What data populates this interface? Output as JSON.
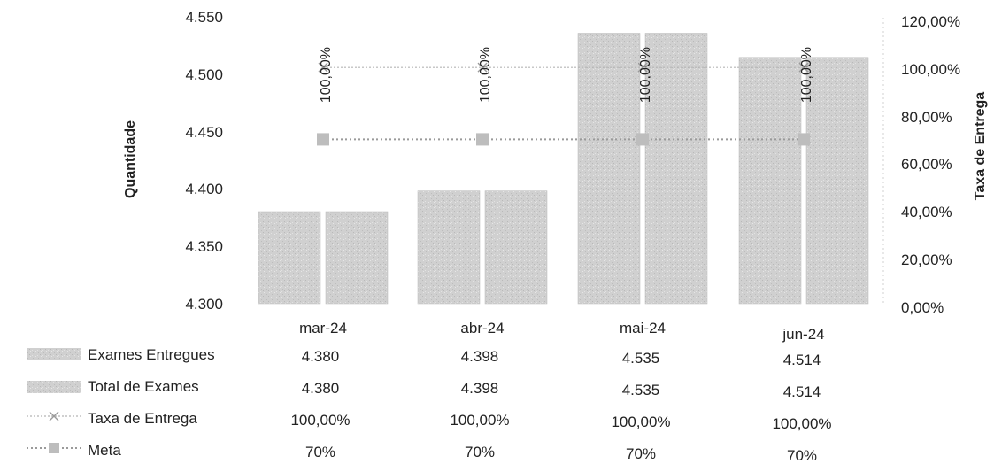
{
  "chart_data": {
    "type": "bar",
    "categories": [
      "mar-24",
      "abr-24",
      "mai-24",
      "jun-24"
    ],
    "series": [
      {
        "name": "Exames Entregues",
        "type": "bar",
        "axis": "left",
        "values": [
          4380,
          4398,
          4535,
          4514
        ]
      },
      {
        "name": "Total de Exames",
        "type": "bar",
        "axis": "left",
        "values": [
          4380,
          4398,
          4535,
          4514
        ]
      },
      {
        "name": "Taxa de Entrega",
        "type": "line",
        "axis": "right",
        "values": [
          100,
          100,
          100,
          100
        ]
      },
      {
        "name": "Meta",
        "type": "line",
        "axis": "right",
        "values": [
          70,
          70,
          70,
          70
        ]
      }
    ],
    "ylabel": "Quantidade",
    "y2label": "Taxa de Entrega",
    "ylim": [
      4300,
      4550
    ],
    "y2lim": [
      0,
      120
    ],
    "yticks": [
      "4.300",
      "4.350",
      "4.400",
      "4.450",
      "4.500",
      "4.550"
    ],
    "y2ticks": [
      "0,00%",
      "20,00%",
      "40,00%",
      "60,00%",
      "80,00%",
      "100,00%",
      "120,00%"
    ],
    "data_labels": [
      "100,00%",
      "100,00%",
      "100,00%",
      "100,00%"
    ],
    "table": {
      "rows": [
        {
          "label": "Exames Entregues",
          "cells": [
            "4.380",
            "4.398",
            "4.535",
            "4.514"
          ]
        },
        {
          "label": "Total de Exames",
          "cells": [
            "4.380",
            "4.398",
            "4.535",
            "4.514"
          ]
        },
        {
          "label": "Taxa de Entrega",
          "cells": [
            "100,00%",
            "100,00%",
            "100,00%",
            "100,00%"
          ]
        },
        {
          "label": "Meta",
          "cells": [
            "70%",
            "70%",
            "70%",
            "70%"
          ]
        }
      ]
    },
    "colors": {
      "bar": "#d2d2d2",
      "bar_edge": "#b8b8b8",
      "line": "#9a9a9a",
      "marker": "#bdbdbd"
    },
    "grid": false
  }
}
